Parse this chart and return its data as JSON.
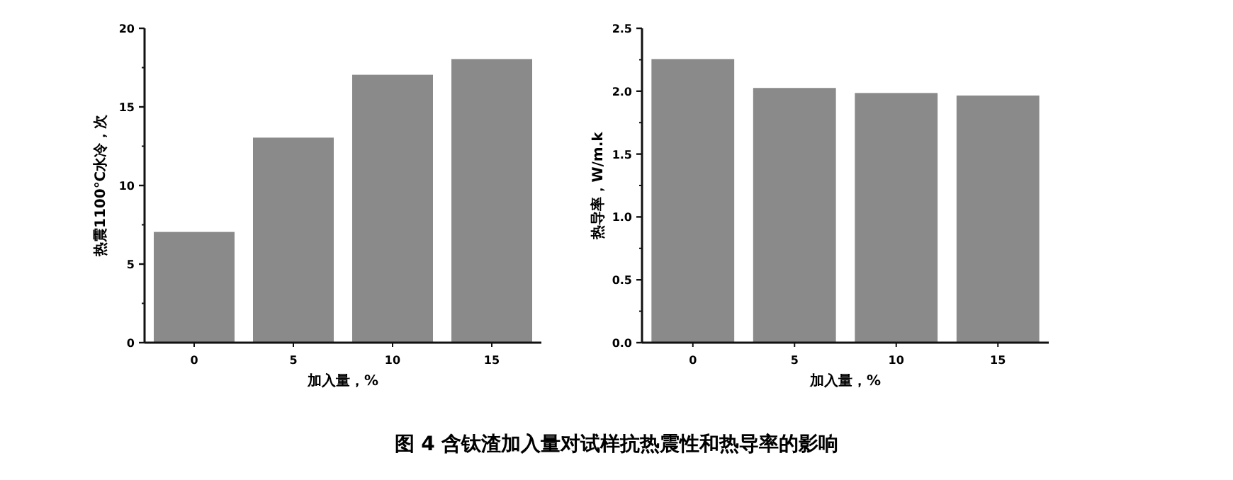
{
  "chart_data": [
    {
      "type": "bar",
      "xlabel": "加入量，%",
      "ylabel": "热震1100℃水冷，次",
      "categories": [
        "0",
        "5",
        "10",
        "15"
      ],
      "values": [
        7,
        13,
        17,
        18
      ],
      "color": "#8a8a8a",
      "ylim": [
        0,
        20
      ],
      "yticks": [
        0,
        5,
        10,
        15,
        20
      ],
      "grid": false,
      "annotations": [
        "图 4  含钛渣加入量对试样抗热震性和热导率的影响"
      ]
    },
    {
      "type": "bar",
      "xlabel": "加入量，%",
      "ylabel": "热导率，W/m.k",
      "categories": [
        "0",
        "5",
        "10",
        "15"
      ],
      "values": [
        2.25,
        2.02,
        1.98,
        1.96
      ],
      "color": "#8a8a8a",
      "ylim": [
        0,
        2.5
      ],
      "yticks": [
        {
          "value": 0,
          "label": "0.0"
        },
        {
          "value": 0.5,
          "label": "0.5"
        },
        {
          "value": 1,
          "label": "1.0"
        },
        {
          "value": 1.5,
          "label": "1.5"
        },
        {
          "value": 2,
          "label": "2.0"
        },
        {
          "value": 2.5,
          "label": "2.5"
        }
      ],
      "grid": false
    }
  ]
}
